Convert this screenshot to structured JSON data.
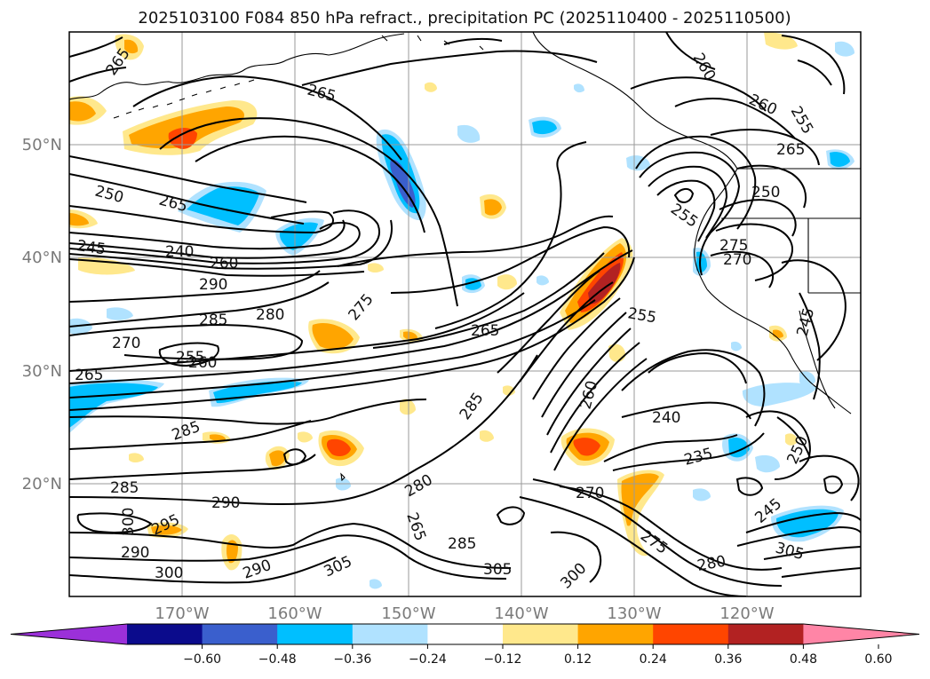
{
  "title": "2025103100 F084 850 hPa refract., precipitation PC (2025110400 - 2025110500)",
  "map": {
    "lon_labels": [
      "170°W",
      "160°W",
      "150°W",
      "140°W",
      "130°W",
      "120°W"
    ],
    "lat_labels": [
      "20°N",
      "30°N",
      "40°N",
      "50°N"
    ],
    "contour_labels": [
      "265",
      "265",
      "250",
      "265",
      "245",
      "240",
      "260",
      "290",
      "285",
      "280",
      "275",
      "270",
      "255",
      "260",
      "265",
      "265",
      "285",
      "290",
      "285",
      "295",
      "300",
      "290",
      "300",
      "305",
      "280",
      "265",
      "285",
      "305",
      "285",
      "290",
      "300",
      "270",
      "275",
      "280",
      "240",
      "235",
      "245",
      "250",
      "305",
      "255",
      "260",
      "255",
      "265",
      "250",
      "275",
      "270",
      "260",
      "245",
      "260",
      "255"
    ]
  },
  "colorbar": {
    "ticks": [
      "−0.60",
      "−0.48",
      "−0.36",
      "−0.24",
      "−0.12",
      "0.12",
      "0.24",
      "0.36",
      "0.48",
      "0.60"
    ],
    "colors": [
      "#9b30d9",
      "#0b0b8c",
      "#3a5fcd",
      "#00bfff",
      "#b0e2ff",
      "#ffffff",
      "#ffe88c",
      "#ffa500",
      "#ff4500",
      "#b22222",
      "#ff85a6"
    ]
  },
  "chart_data": {
    "type": "heatmap",
    "title": "2025103100 F084 850 hPa refract., precipitation PC (2025110400 - 2025110500)",
    "x_ticks": [
      "170°W",
      "160°W",
      "150°W",
      "140°W",
      "130°W",
      "120°W"
    ],
    "y_ticks": [
      "20°N",
      "30°N",
      "40°N",
      "50°N"
    ],
    "xlim_deg": [
      -180,
      -110
    ],
    "ylim_deg": [
      10,
      60
    ],
    "colorbar_ticks": [
      -0.6,
      -0.48,
      -0.36,
      -0.24,
      -0.12,
      0.12,
      0.24,
      0.36,
      0.48,
      0.6
    ],
    "contour_levels_shown": [
      235,
      240,
      245,
      250,
      255,
      260,
      265,
      270,
      275,
      280,
      285,
      290,
      295,
      300,
      305
    ]
  }
}
